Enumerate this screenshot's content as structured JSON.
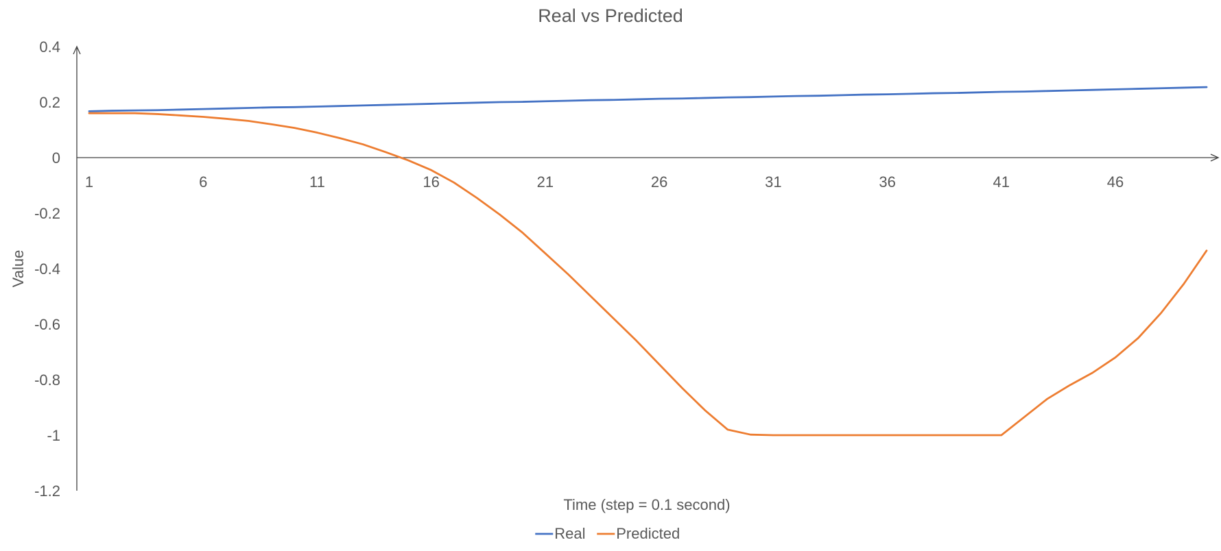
{
  "chart_data": {
    "type": "line",
    "title": "Real vs Predicted",
    "xlabel": "Time (step = 0.1 second)",
    "ylabel": "Value",
    "ylim": [
      -1.2,
      0.4
    ],
    "y_ticks": [
      "0.4",
      "0.2",
      "0",
      "-0.2",
      "-0.4",
      "-0.6",
      "-0.8",
      "-1",
      "-1.2"
    ],
    "y_tick_values": [
      0.4,
      0.2,
      0,
      -0.2,
      -0.4,
      -0.6,
      -0.8,
      -1,
      -1.2
    ],
    "x_tick_labels": [
      "1",
      "6",
      "11",
      "16",
      "21",
      "26",
      "31",
      "36",
      "41",
      "46"
    ],
    "x_tick_values": [
      1,
      6,
      11,
      16,
      21,
      26,
      31,
      36,
      41,
      46
    ],
    "x": [
      1,
      2,
      3,
      4,
      5,
      6,
      7,
      8,
      9,
      10,
      11,
      12,
      13,
      14,
      15,
      16,
      17,
      18,
      19,
      20,
      21,
      22,
      23,
      24,
      25,
      26,
      27,
      28,
      29,
      30,
      31,
      32,
      33,
      34,
      35,
      36,
      37,
      38,
      39,
      40,
      41,
      42,
      43,
      44,
      45,
      46,
      47,
      48,
      49,
      50
    ],
    "series": [
      {
        "name": "Real",
        "color": "#4472C4",
        "values": [
          0.167,
          0.169,
          0.17,
          0.171,
          0.173,
          0.175,
          0.177,
          0.179,
          0.181,
          0.182,
          0.184,
          0.186,
          0.188,
          0.19,
          0.192,
          0.194,
          0.196,
          0.198,
          0.2,
          0.201,
          0.203,
          0.205,
          0.207,
          0.208,
          0.21,
          0.212,
          0.213,
          0.215,
          0.217,
          0.218,
          0.22,
          0.222,
          0.223,
          0.225,
          0.227,
          0.228,
          0.23,
          0.232,
          0.233,
          0.235,
          0.237,
          0.238,
          0.24,
          0.242,
          0.244,
          0.246,
          0.248,
          0.25,
          0.252,
          0.254
        ]
      },
      {
        "name": "Predicted",
        "color": "#ED7D31",
        "values": [
          0.16,
          0.16,
          0.16,
          0.157,
          0.152,
          0.147,
          0.14,
          0.132,
          0.12,
          0.107,
          0.09,
          0.07,
          0.048,
          0.02,
          -0.01,
          -0.045,
          -0.09,
          -0.145,
          -0.205,
          -0.27,
          -0.345,
          -0.42,
          -0.5,
          -0.58,
          -0.66,
          -0.745,
          -0.83,
          -0.91,
          -0.98,
          -0.998,
          -1.0,
          -1.0,
          -1.0,
          -1.0,
          -1.0,
          -1.0,
          -1.0,
          -1.0,
          -1.0,
          -1.0,
          -1.0,
          -0.935,
          -0.87,
          -0.82,
          -0.775,
          -0.72,
          -0.65,
          -0.56,
          -0.455,
          -0.335
        ]
      }
    ],
    "legend": {
      "position": "bottom",
      "entries": [
        "Real",
        "Predicted"
      ]
    },
    "grid": false
  }
}
